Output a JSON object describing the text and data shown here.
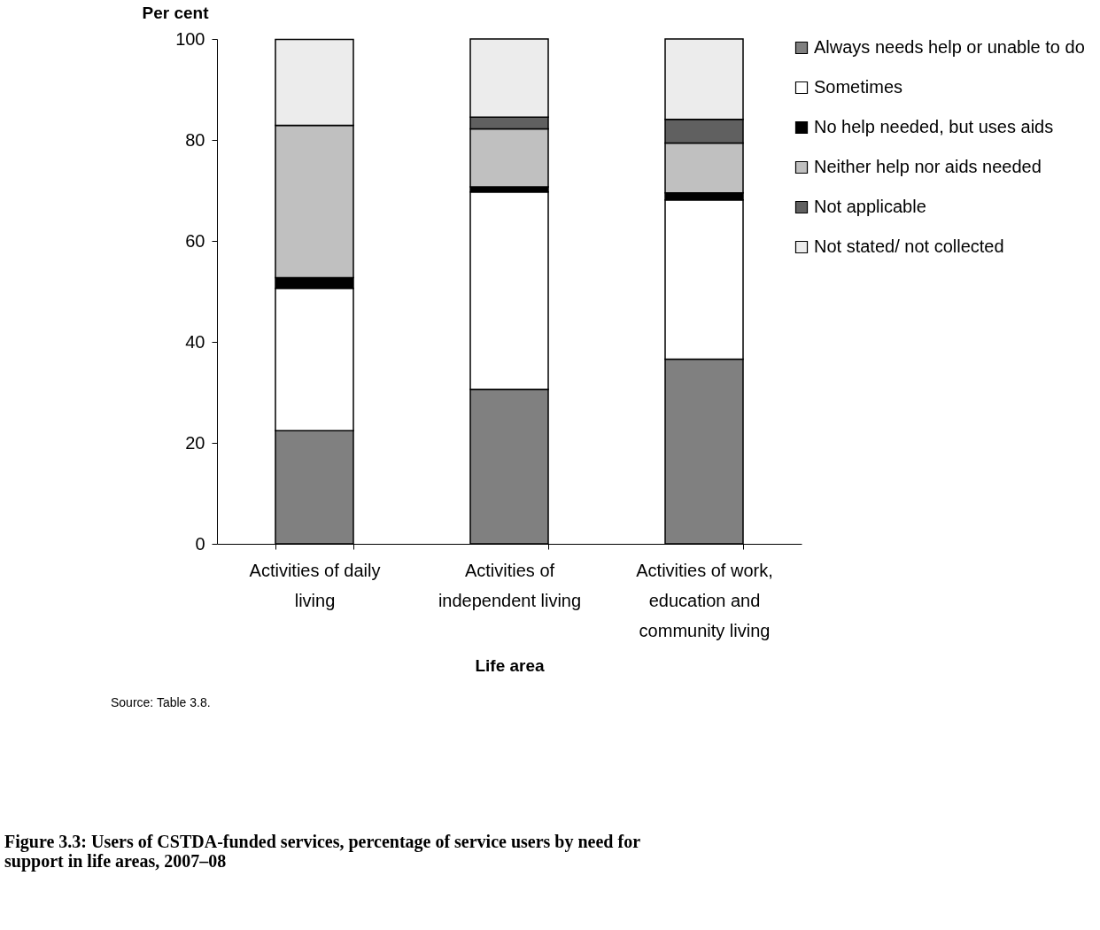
{
  "chart_data": {
    "type": "bar",
    "stacked": true,
    "title": "Figure 3.3: Users of CSTDA-funded services, percentage of service users by need for support in life areas, 2007–08",
    "xlabel": "Life area",
    "ylabel": "Per cent",
    "categories": [
      "Activities of daily living",
      "Activities of independent living",
      "Activities of work, education and community living"
    ],
    "series": [
      {
        "name": "Always needs help or unable to do",
        "color": "#808080",
        "values": [
          22.4,
          30.6,
          36.6
        ]
      },
      {
        "name": "Sometimes",
        "color": "#ffffff",
        "values": [
          28.2,
          39.1,
          31.5
        ]
      },
      {
        "name": "No help needed, but uses aids",
        "color": "#000000",
        "values": [
          2.1,
          1.0,
          1.4
        ]
      },
      {
        "name": "Neither help nor aids needed",
        "color": "#c0c0c0",
        "values": [
          30.2,
          11.5,
          9.9
        ]
      },
      {
        "name": "Not applicable",
        "color": "#606060",
        "values": [
          0,
          2.3,
          4.7
        ]
      },
      {
        "name": "Not stated/ not collected",
        "color": "#ececec",
        "values": [
          17.0,
          15.5,
          15.9
        ]
      }
    ],
    "ylim": [
      0,
      100
    ],
    "yticks": [
      0,
      20,
      40,
      60,
      80,
      100
    ],
    "grid": false,
    "legend": "right",
    "annotations": [
      "Source: Table 3.8."
    ]
  }
}
